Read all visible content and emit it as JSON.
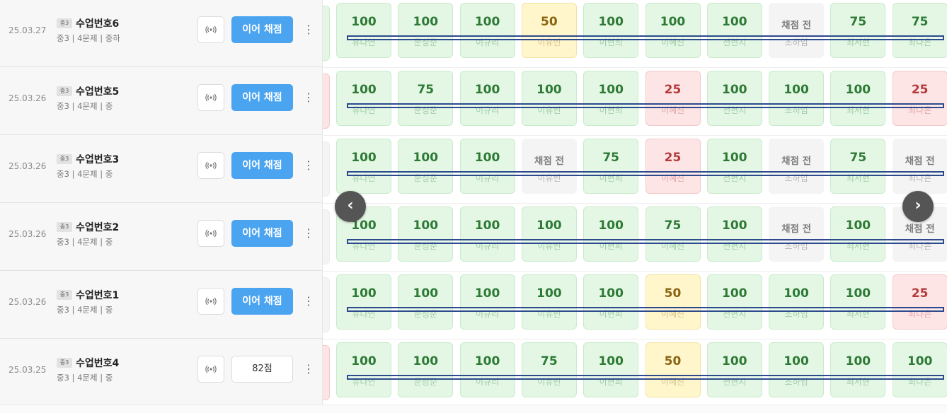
{
  "rows": [
    {
      "date": "25.03.27",
      "grade": "중3",
      "name": "수업번호6",
      "meta": "중3 | 4문제 | 중하",
      "button": "이어 채점",
      "cells": [
        {
          "v": "100",
          "n": "유다연",
          "s": "g"
        },
        {
          "v": "100",
          "n": "문성준",
          "s": "g"
        },
        {
          "v": "100",
          "n": "이규리",
          "s": "g"
        },
        {
          "v": "50",
          "n": "이유빈",
          "s": "y"
        },
        {
          "v": "100",
          "n": "이현희",
          "s": "g"
        },
        {
          "v": "100",
          "n": "이혜진",
          "s": "g"
        },
        {
          "v": "100",
          "n": "전현지",
          "s": "g"
        },
        {
          "v": "채점 전",
          "n": "조하임",
          "s": "n"
        },
        {
          "v": "75",
          "n": "최서현",
          "s": "g"
        },
        {
          "v": "75",
          "n": "최다은",
          "s": "g"
        }
      ],
      "lead": "g"
    },
    {
      "date": "25.03.26",
      "grade": "중3",
      "name": "수업번호5",
      "meta": "중3 | 4문제 | 중",
      "button": "이어 채점",
      "cells": [
        {
          "v": "100",
          "n": "유다연",
          "s": "g"
        },
        {
          "v": "75",
          "n": "문성준",
          "s": "g"
        },
        {
          "v": "100",
          "n": "이규리",
          "s": "g"
        },
        {
          "v": "100",
          "n": "이유빈",
          "s": "g"
        },
        {
          "v": "100",
          "n": "이현희",
          "s": "g"
        },
        {
          "v": "25",
          "n": "이혜진",
          "s": "r"
        },
        {
          "v": "100",
          "n": "전현지",
          "s": "g"
        },
        {
          "v": "100",
          "n": "조하임",
          "s": "g"
        },
        {
          "v": "100",
          "n": "최서현",
          "s": "g"
        },
        {
          "v": "25",
          "n": "최다은",
          "s": "r"
        }
      ],
      "lead": "r"
    },
    {
      "date": "25.03.26",
      "grade": "중3",
      "name": "수업번호3",
      "meta": "중3 | 4문제 | 중",
      "button": "이어 채점",
      "cells": [
        {
          "v": "100",
          "n": "유다연",
          "s": "g"
        },
        {
          "v": "100",
          "n": "문성준",
          "s": "g"
        },
        {
          "v": "100",
          "n": "이규리",
          "s": "g"
        },
        {
          "v": "채점 전",
          "n": "이유빈",
          "s": "n"
        },
        {
          "v": "75",
          "n": "이현희",
          "s": "g"
        },
        {
          "v": "25",
          "n": "이혜진",
          "s": "r"
        },
        {
          "v": "100",
          "n": "전현지",
          "s": "g"
        },
        {
          "v": "채점 전",
          "n": "조하임",
          "s": "n"
        },
        {
          "v": "75",
          "n": "최서현",
          "s": "g"
        },
        {
          "v": "채점 전",
          "n": "최다은",
          "s": "n"
        }
      ],
      "lead": "n"
    },
    {
      "date": "25.03.26",
      "grade": "중3",
      "name": "수업번호2",
      "meta": "중3 | 4문제 | 중",
      "button": "이어 채점",
      "cells": [
        {
          "v": "100",
          "n": "유다연",
          "s": "g"
        },
        {
          "v": "100",
          "n": "문성준",
          "s": "g"
        },
        {
          "v": "100",
          "n": "이규리",
          "s": "g"
        },
        {
          "v": "100",
          "n": "이유빈",
          "s": "g"
        },
        {
          "v": "100",
          "n": "이현희",
          "s": "g"
        },
        {
          "v": "75",
          "n": "이혜진",
          "s": "g"
        },
        {
          "v": "100",
          "n": "전현지",
          "s": "g"
        },
        {
          "v": "채점 전",
          "n": "조하임",
          "s": "n"
        },
        {
          "v": "100",
          "n": "최서현",
          "s": "g"
        },
        {
          "v": "채점 전",
          "n": "최다은",
          "s": "n"
        }
      ],
      "lead": "n"
    },
    {
      "date": "25.03.26",
      "grade": "중3",
      "name": "수업번호1",
      "meta": "중3 | 4문제 | 중",
      "button": "이어 채점",
      "cells": [
        {
          "v": "100",
          "n": "유다연",
          "s": "g"
        },
        {
          "v": "100",
          "n": "문성준",
          "s": "g"
        },
        {
          "v": "100",
          "n": "이규리",
          "s": "g"
        },
        {
          "v": "100",
          "n": "이유빈",
          "s": "g"
        },
        {
          "v": "100",
          "n": "이현희",
          "s": "g"
        },
        {
          "v": "50",
          "n": "이혜진",
          "s": "y"
        },
        {
          "v": "100",
          "n": "전현지",
          "s": "g"
        },
        {
          "v": "100",
          "n": "조하임",
          "s": "g"
        },
        {
          "v": "100",
          "n": "최서현",
          "s": "g"
        },
        {
          "v": "25",
          "n": "최다은",
          "s": "r"
        }
      ],
      "lead": "n"
    },
    {
      "date": "25.03.25",
      "grade": "중3",
      "name": "수업번호4",
      "meta": "중3 | 4문제 | 중",
      "score": "82점",
      "cells": [
        {
          "v": "100",
          "n": "유다연",
          "s": "g"
        },
        {
          "v": "100",
          "n": "문성준",
          "s": "g"
        },
        {
          "v": "100",
          "n": "이규리",
          "s": "g"
        },
        {
          "v": "75",
          "n": "이유빈",
          "s": "g"
        },
        {
          "v": "100",
          "n": "이현희",
          "s": "g"
        },
        {
          "v": "50",
          "n": "이혜진",
          "s": "y"
        },
        {
          "v": "100",
          "n": "전현지",
          "s": "g"
        },
        {
          "v": "100",
          "n": "조하임",
          "s": "g"
        },
        {
          "v": "100",
          "n": "최서현",
          "s": "g"
        },
        {
          "v": "100",
          "n": "최다은",
          "s": "g"
        }
      ],
      "lead": "r"
    }
  ],
  "nav": {
    "prev_label": "‹",
    "next_label": "›"
  },
  "icons": {
    "broadcast": "broadcast-icon",
    "kebab": "more-vertical-icon"
  },
  "colors": {
    "accent": "#4aa4f0",
    "green_bg": "#e4f7e5",
    "yellow_bg": "#fff6cc",
    "red_bg": "#fde5e6",
    "pending_bg": "#f4f4f4"
  }
}
